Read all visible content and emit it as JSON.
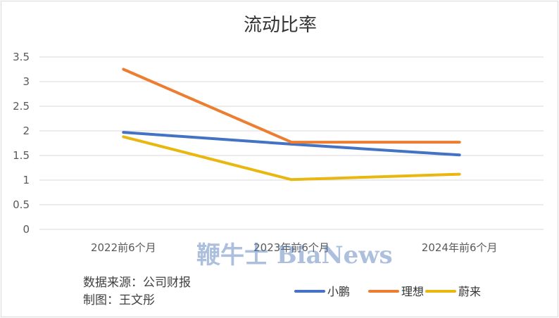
{
  "chart_data": {
    "type": "line",
    "title": "流动比率",
    "categories": [
      "2022前6个月",
      "2023年前6个月",
      "2024年前6个月"
    ],
    "series": [
      {
        "name": "小鹏",
        "color": "#4472c4",
        "values": [
          1.97,
          1.73,
          1.51
        ]
      },
      {
        "name": "理想",
        "color": "#ed7d31",
        "values": [
          3.25,
          1.77,
          1.77
        ]
      },
      {
        "name": "蔚来",
        "color": "#e8b710",
        "values": [
          1.88,
          1.01,
          1.12
        ]
      }
    ],
    "yticks": [
      "0",
      "0.5",
      "1",
      "1.5",
      "2",
      "2.5",
      "3",
      "3.5"
    ],
    "ylim": [
      0,
      3.5
    ],
    "legend_position": "bottom-right",
    "grid": true
  },
  "footer": {
    "source": "数据来源：公司财报",
    "author": "制图：王文彤"
  },
  "watermark": "鞭牛士 BiaNews"
}
